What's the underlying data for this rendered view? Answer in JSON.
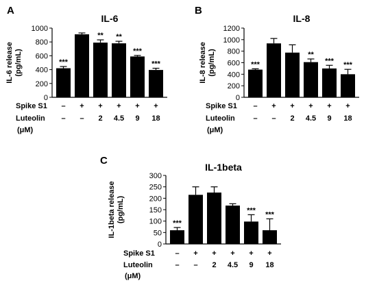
{
  "chart_data": [
    {
      "panel": "A",
      "type": "bar",
      "title": "IL-6",
      "ylabel_lines": [
        "IL-6 release",
        "(pg/mL)"
      ],
      "ylim": [
        0,
        1000
      ],
      "yticks": [
        "0",
        "200",
        "400",
        "600",
        "800",
        "1000"
      ],
      "yticks_values": [
        0,
        200,
        400,
        600,
        800,
        1000
      ],
      "values": [
        420,
        910,
        790,
        780,
        590,
        395
      ],
      "errors": [
        25,
        20,
        40,
        30,
        15,
        25
      ],
      "significance": [
        "***",
        "",
        "**",
        "**",
        "***",
        "***"
      ],
      "rows": [
        {
          "label": "Spike S1",
          "values": [
            "–",
            "+",
            "+",
            "+",
            "+",
            "+"
          ]
        },
        {
          "label": "Luteolin",
          "values": [
            "–",
            "–",
            "2",
            "4.5",
            "9",
            "18"
          ]
        }
      ],
      "unit_label": "(μM)",
      "grid": false
    },
    {
      "panel": "B",
      "type": "bar",
      "title": "IL-8",
      "ylabel_lines": [
        "IL-8 release",
        "(pg/mL)"
      ],
      "ylim": [
        0,
        1200
      ],
      "yticks": [
        "0",
        "200",
        "400",
        "600",
        "800",
        "1000",
        "1200"
      ],
      "yticks_values": [
        0,
        200,
        400,
        600,
        800,
        1000,
        1200
      ],
      "values": [
        480,
        935,
        775,
        610,
        500,
        400
      ],
      "errors": [
        15,
        85,
        135,
        55,
        55,
        85
      ],
      "significance": [
        "***",
        "",
        "",
        "**",
        "***",
        "***"
      ],
      "rows": [
        {
          "label": "Spike S1",
          "values": [
            "–",
            "+",
            "+",
            "+",
            "+",
            "+"
          ]
        },
        {
          "label": "Luteolin",
          "values": [
            "–",
            "–",
            "2",
            "4.5",
            "9",
            "18"
          ]
        }
      ],
      "unit_label": "(μM)",
      "grid": false
    },
    {
      "panel": "C",
      "type": "bar",
      "title": "IL-1beta",
      "ylabel_lines": [
        "IL-1beta release",
        "(pg/mL)"
      ],
      "ylim": [
        0,
        300
      ],
      "yticks": [
        "0",
        "50",
        "100",
        "150",
        "200",
        "250",
        "300"
      ],
      "yticks_values": [
        0,
        50,
        100,
        150,
        200,
        250,
        300
      ],
      "values": [
        60,
        215,
        225,
        168,
        98,
        60
      ],
      "errors": [
        12,
        35,
        25,
        8,
        30,
        50
      ],
      "significance": [
        "***",
        "",
        "",
        "",
        "***",
        "***"
      ],
      "rows": [
        {
          "label": "Spike S1",
          "values": [
            "–",
            "+",
            "+",
            "+",
            "+",
            "+"
          ]
        },
        {
          "label": "Luteolin",
          "values": [
            "–",
            "–",
            "2",
            "4.5",
            "9",
            "18"
          ]
        }
      ],
      "unit_label": "(μM)",
      "grid": false
    }
  ]
}
